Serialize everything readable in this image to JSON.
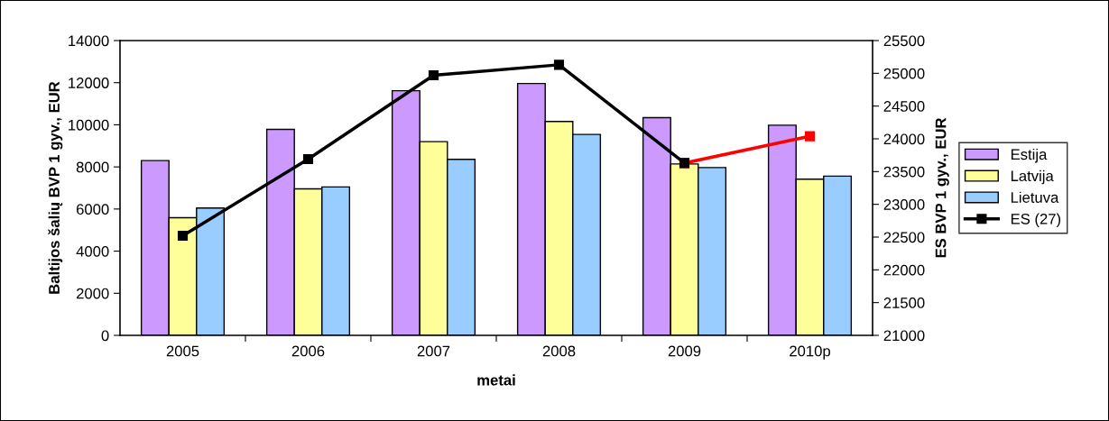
{
  "chart_data": {
    "type": "bar",
    "xlabel": "metai",
    "ylabel": "Baltijos šalių BVP 1 gyv., EUR",
    "y2label": "ES BVP 1 gyv., EUR",
    "categories": [
      "2005",
      "2006",
      "2007",
      "2008",
      "2009",
      "2010p"
    ],
    "series": [
      {
        "name": "Estija",
        "color": "#cc99ff",
        "values": [
          8300,
          9780,
          11620,
          11960,
          10340,
          9980
        ]
      },
      {
        "name": "Latvija",
        "color": "#ffff99",
        "values": [
          5590,
          6960,
          9200,
          10160,
          8140,
          7420
        ]
      },
      {
        "name": "Lietuva",
        "color": "#99ccff",
        "values": [
          6050,
          7050,
          8360,
          9540,
          7970,
          7560
        ]
      },
      {
        "type": "line",
        "axis": "y2",
        "color": "#ff0000",
        "marker": "square",
        "values": [
          null,
          null,
          null,
          null,
          23630,
          24040
        ]
      },
      {
        "name": "ES (27)",
        "type": "line",
        "axis": "y2",
        "color": "#000000",
        "marker": "square",
        "values": [
          22520,
          23690,
          24970,
          25130,
          23630,
          null
        ]
      }
    ],
    "ylim": [
      0,
      14000
    ],
    "yticks": [
      0,
      2000,
      4000,
      6000,
      8000,
      10000,
      12000,
      14000
    ],
    "y2lim": [
      21000,
      25500
    ],
    "y2ticks": [
      21000,
      21500,
      22000,
      22500,
      23000,
      23500,
      24000,
      24500,
      25000,
      25500
    ],
    "grid": false,
    "legend": "right"
  }
}
